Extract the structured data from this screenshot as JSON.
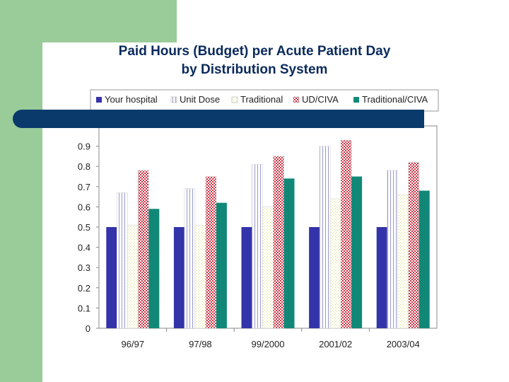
{
  "slide": {
    "title_line1": "Paid Hours (Budget) per Acute Patient Day",
    "title_line2": "by Distribution System"
  },
  "colors": {
    "accent_green": "#99cc99",
    "navy_band": "#0a3a6b",
    "title_text": "#0a2a5c"
  },
  "chart_data": {
    "type": "bar",
    "title": "Paid Hours (Budget) per Acute Patient Day by Distribution System",
    "xlabel": "",
    "ylabel": "",
    "ylim": [
      0,
      1.0
    ],
    "yticks": [
      "0",
      "0.1",
      "0.2",
      "0.3",
      "0.4",
      "0.5",
      "0.6",
      "0.7",
      "0.8",
      "0.9"
    ],
    "categories": [
      "96/97",
      "97/98",
      "99/2000",
      "2001/02",
      "2003/04"
    ],
    "legend_position": "top",
    "series": [
      {
        "name": "Your hospital",
        "color": "#3333aa",
        "pattern": "solid",
        "values": [
          0.5,
          0.5,
          0.5,
          0.5,
          0.5
        ]
      },
      {
        "name": "Unit Dose",
        "color": "#9999cc",
        "pattern": "vlines",
        "values": [
          0.67,
          0.69,
          0.81,
          0.9,
          0.78
        ]
      },
      {
        "name": "Traditional",
        "color": "#dddd77",
        "pattern": "dots",
        "values": [
          0.51,
          0.51,
          0.6,
          0.64,
          0.66
        ]
      },
      {
        "name": "UD/CIVA",
        "color": "#cc3344",
        "pattern": "checker",
        "values": [
          0.78,
          0.75,
          0.85,
          0.93,
          0.82
        ]
      },
      {
        "name": "Traditional/CIVA",
        "color": "#118877",
        "pattern": "solid",
        "values": [
          0.59,
          0.62,
          0.74,
          0.75,
          0.68
        ]
      }
    ]
  }
}
